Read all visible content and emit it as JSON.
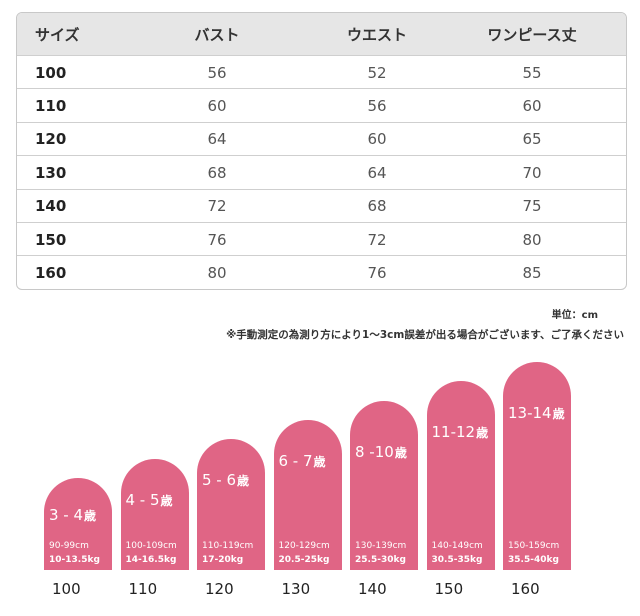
{
  "table": {
    "headers": [
      "サイズ",
      "バスト",
      "ウエスト",
      "ワンピース丈"
    ],
    "rows": [
      [
        "100",
        "56",
        "52",
        "55"
      ],
      [
        "110",
        "60",
        "56",
        "60"
      ],
      [
        "120",
        "64",
        "60",
        "65"
      ],
      [
        "130",
        "68",
        "64",
        "70"
      ],
      [
        "140",
        "72",
        "68",
        "75"
      ],
      [
        "150",
        "76",
        "72",
        "80"
      ],
      [
        "160",
        "80",
        "76",
        "85"
      ]
    ]
  },
  "unit_note": "単位：cm",
  "disclaimer": "※手動測定の為測り方により1～3cm誤差が出る場合がございます、ご了承ください",
  "colors": {
    "bar": "#e06585",
    "header_bg": "#e6e6e6"
  },
  "chart_data": {
    "type": "bar",
    "categories": [
      "100",
      "110",
      "120",
      "130",
      "140",
      "150",
      "160"
    ],
    "ages": [
      "3 - 4",
      "4 - 5",
      "5 - 6",
      "6 - 7",
      "8 -10",
      "11-12",
      "13-14"
    ],
    "age_suffix": "歳",
    "heights_text": [
      "90-99cm",
      "100-109cm",
      "110-119cm",
      "120-129cm",
      "130-139cm",
      "140-149cm",
      "150-159cm"
    ],
    "weights_text": [
      "10-13.5kg",
      "14-16.5kg",
      "17-20kg",
      "20.5-25kg",
      "25.5-30kg",
      "30.5-35kg",
      "35.5-40kg"
    ],
    "height_min_cm": [
      90,
      100,
      110,
      120,
      130,
      140,
      150
    ]
  }
}
